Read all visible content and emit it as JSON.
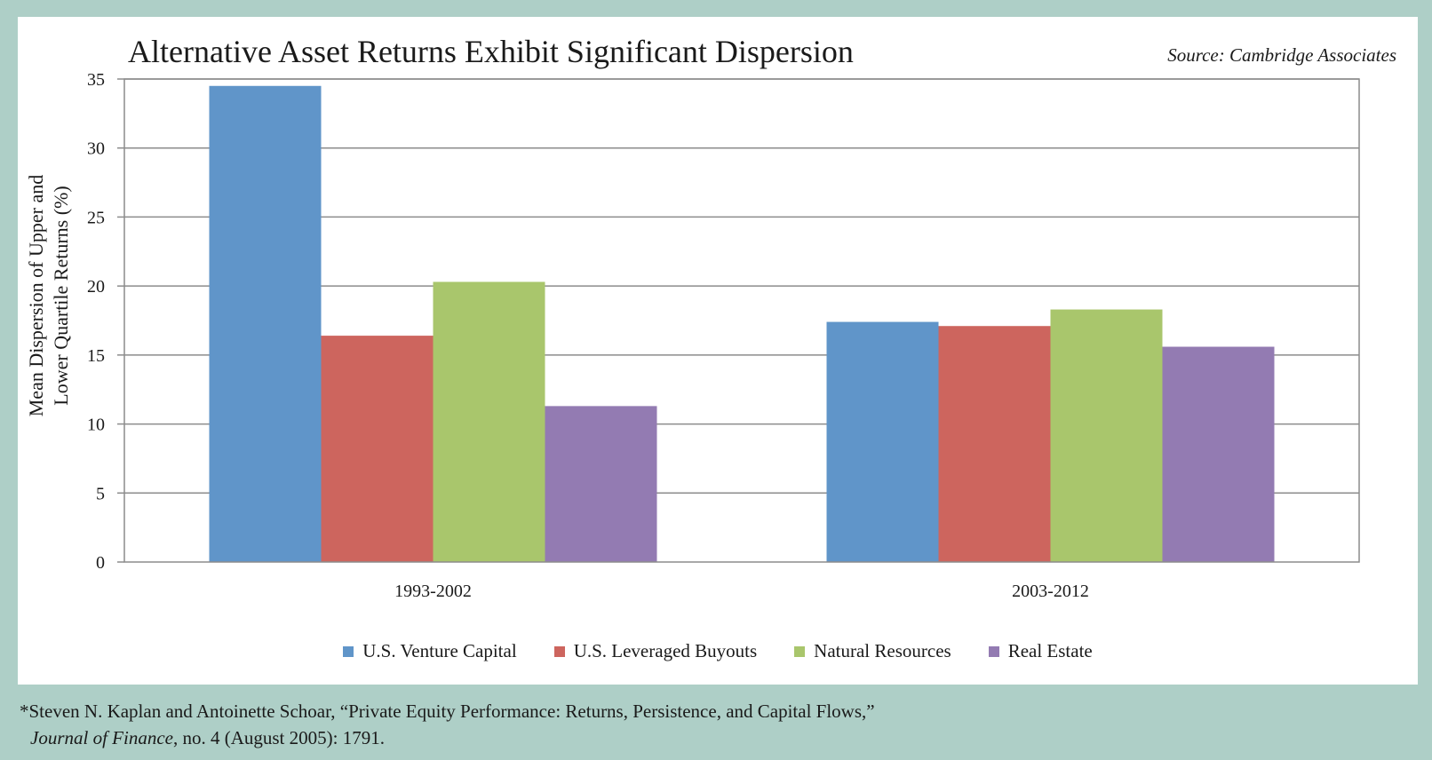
{
  "chart_data": {
    "type": "bar",
    "title": "Alternative Asset Returns Exhibit Significant Dispersion",
    "source": "Source: Cambridge Associates",
    "ylabel_line1": "Mean Dispersion of Upper and",
    "ylabel_line2": "Lower Quartile Returns (%)",
    "categories": [
      "1993-2002",
      "2003-2012"
    ],
    "ylim": [
      0,
      35
    ],
    "yticks": [
      0,
      5,
      10,
      15,
      20,
      25,
      30,
      35
    ],
    "grid": true,
    "legend_position": "bottom",
    "series": [
      {
        "name": "U.S. Venture Capital",
        "color": "#6095c9",
        "values": [
          34.5,
          17.4
        ]
      },
      {
        "name": "U.S. Leveraged Buyouts",
        "color": "#cd655e",
        "values": [
          16.4,
          17.1
        ]
      },
      {
        "name": "Natural Resources",
        "color": "#a9c66c",
        "values": [
          20.3,
          18.3
        ]
      },
      {
        "name": "Real Estate",
        "color": "#937bb2",
        "values": [
          11.3,
          15.6
        ]
      }
    ]
  },
  "footnote": {
    "marker": "*",
    "line1": "Steven N. Kaplan and Antoinette Schoar, “Private Equity Performance: Returns, Persistence, and Capital Flows,”",
    "journal": "Journal of Finance",
    "line2_rest": ", no. 4 (August 2005): 1791."
  }
}
